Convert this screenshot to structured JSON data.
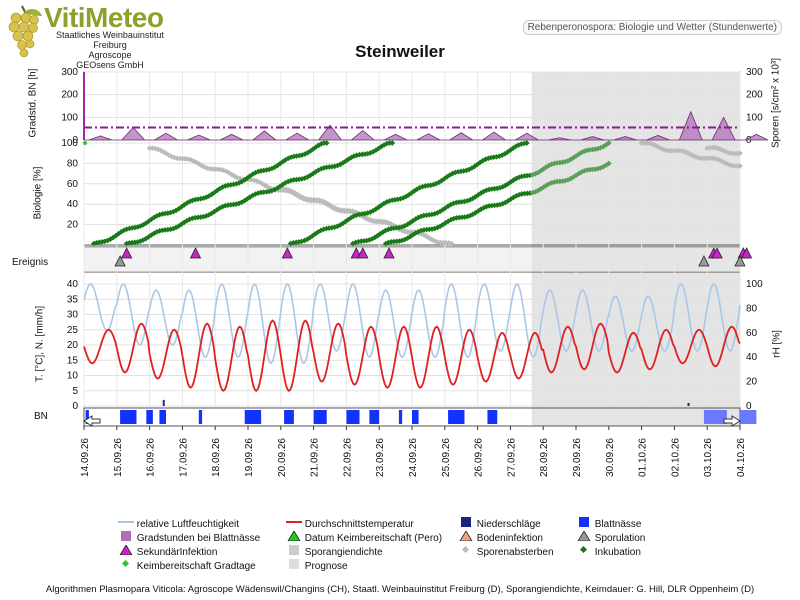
{
  "logo": {
    "title": "VitiMeteo",
    "line1": "Staatliches Weinbauinstitut Freiburg",
    "line2": "Agroscope",
    "line3": "GEOsens GmbH"
  },
  "header_label": "Rebenperonospora: Biologie und Wetter (Stundenwerte)",
  "station": "Steinweiler",
  "axes": {
    "gradstd_label": "Gradstd. BN [h]",
    "sporen_label": "Sporen [s/cm² x 10³]",
    "biologie_label": "Biologie [%]",
    "ereignis_label": "Ereignis",
    "temp_label": "T. [°C], N. [mm/h]",
    "rh_label": "rH [%]",
    "bn_label": "BN"
  },
  "footer": "Algorithmen Plasmopara Viticola: Agroscope Wädenswil/Changins (CH), Staatl. Weinbauinstitut Freiburg (D), Sporangiendichte, Keimdauer: G. Hill, DLR Oppenheim (D)",
  "legend": [
    {
      "label": "relative Luftfeuchtigkeit",
      "symbol": "line",
      "color": "#a9c8e8"
    },
    {
      "label": "Durchschnittstemperatur",
      "symbol": "line",
      "color": "#e02020"
    },
    {
      "label": "Niederschläge",
      "symbol": "square",
      "color": "#1a237e"
    },
    {
      "label": "Blattnässe",
      "symbol": "square",
      "color": "#1432ff"
    },
    {
      "label": "Gradstunden bei Blattnässe",
      "symbol": "square",
      "color": "#b070b8"
    },
    {
      "label": "Datum Keimbereitschaft (Pero)",
      "symbol": "triangle",
      "color": "#22cc22"
    },
    {
      "label": "Bodeninfektion",
      "symbol": "triangle",
      "color": "#f0a080"
    },
    {
      "label": "Sporulation",
      "symbol": "triangle",
      "color": "#999999"
    },
    {
      "label": "SekundärInfektion",
      "symbol": "triangle",
      "color": "#cc22cc"
    },
    {
      "label": "Sporangiendichte",
      "symbol": "square",
      "color": "#cccccc"
    },
    {
      "label": "Sporenabsterben",
      "symbol": "diamond",
      "color": "#bbbbbb"
    },
    {
      "label": "Inkubation",
      "symbol": "diamond",
      "color": "#1a7a1a"
    },
    {
      "label": "Keimbereitschaft Gradtage",
      "symbol": "diamond",
      "color": "#22cc22"
    },
    {
      "label": "Prognose",
      "symbol": "square",
      "color": "#dddddd"
    }
  ],
  "chart_data": {
    "type": "line",
    "dates": [
      "14.09.26",
      "15.09.26",
      "16.09.26",
      "17.09.26",
      "18.09.26",
      "19.09.26",
      "20.09.26",
      "21.09.26",
      "22.09.26",
      "23.09.26",
      "24.09.26",
      "25.09.26",
      "26.09.26",
      "27.09.26",
      "28.09.26",
      "29.09.26",
      "30.09.26",
      "01.10.26",
      "02.10.26",
      "03.10.26",
      "04.10.26"
    ],
    "prognose_start": "27.09.26",
    "panel_gradstd": {
      "ylim_left": [
        0,
        300
      ],
      "yticks_left": [
        0,
        100,
        200,
        300
      ],
      "ylim_right": [
        0,
        300
      ],
      "yticks_right": [
        0,
        100,
        200,
        300
      ],
      "threshold": 55,
      "gradstd_day_peaks": [
        18,
        55,
        30,
        22,
        25,
        40,
        30,
        65,
        42,
        25,
        28,
        32,
        35,
        30,
        10,
        15,
        15,
        20,
        125,
        100,
        25
      ]
    },
    "panel_biologie": {
      "ylim": [
        0,
        100
      ],
      "yticks": [
        20,
        40,
        60,
        80,
        100
      ],
      "inkubation_curves": [
        {
          "start": 0.3,
          "end": 7.4,
          "from": 0,
          "to": 100
        },
        {
          "start": 1.3,
          "end": 9.4,
          "from": 0,
          "to": 100
        },
        {
          "start": 6.3,
          "end": 13.5,
          "from": 0,
          "to": 100
        },
        {
          "start": 8.2,
          "end": 16.0,
          "from": 0,
          "to": 100
        },
        {
          "start": 9.2,
          "end": 16.0,
          "from": 0,
          "to": 80
        }
      ],
      "absterben_curves": [
        {
          "start": 2.0,
          "end": 11.2,
          "from": 95,
          "to": 0
        },
        {
          "start": 6.0,
          "end": 11.2,
          "from": 55,
          "to": 0
        },
        {
          "start": 17.0,
          "end": 21.0,
          "from": 100,
          "to": 70
        },
        {
          "start": 19.0,
          "end": 21.0,
          "from": 95,
          "to": 85
        }
      ]
    },
    "events": [
      {
        "type": "SekundärInfektion",
        "days": [
          1.3,
          3.4,
          6.2,
          8.3,
          8.5,
          9.3,
          19.2,
          19.3,
          20.1,
          20.2
        ]
      },
      {
        "type": "Sporulation",
        "days": [
          1.1,
          18.9,
          20.0
        ]
      }
    ],
    "panel_weather": {
      "ylim_left": [
        0,
        40
      ],
      "yticks_left": [
        0,
        5,
        10,
        15,
        20,
        25,
        30,
        35,
        40
      ],
      "ylim_right": [
        0,
        100
      ],
      "yticks_right": [
        0,
        20,
        40,
        60,
        80,
        100
      ],
      "temp_day_min": [
        14,
        11,
        9,
        6,
        5,
        5,
        5,
        8,
        7,
        6,
        6,
        7,
        8,
        9,
        11,
        12,
        11,
        12,
        14,
        13,
        14
      ],
      "temp_day_max": [
        25,
        27,
        25,
        27,
        26,
        28,
        28,
        27,
        26,
        26,
        26,
        25,
        24,
        24,
        26,
        27,
        24,
        25,
        25,
        26,
        27
      ],
      "rh_day_min": [
        62,
        50,
        50,
        40,
        40,
        35,
        35,
        45,
        40,
        40,
        40,
        40,
        45,
        40,
        45,
        45,
        45,
        45,
        45,
        45,
        50
      ],
      "rh_day_max": [
        100,
        100,
        95,
        95,
        100,
        100,
        100,
        100,
        100,
        95,
        95,
        100,
        100,
        100,
        95,
        95,
        90,
        90,
        100,
        100,
        100
      ],
      "rain_mm": [
        0,
        0,
        1,
        0,
        0,
        0,
        0,
        0,
        0,
        0,
        0,
        0,
        0,
        0,
        0,
        0,
        0,
        0,
        0.5,
        0,
        0
      ]
    },
    "bn_periods": [
      [
        0.05,
        0.15
      ],
      [
        1.1,
        1.6
      ],
      [
        1.9,
        2.1
      ],
      [
        2.3,
        2.5
      ],
      [
        3.5,
        3.6
      ],
      [
        4.9,
        5.4
      ],
      [
        6.1,
        6.4
      ],
      [
        7.0,
        7.4
      ],
      [
        8.0,
        8.4
      ],
      [
        8.7,
        9.0
      ],
      [
        9.6,
        9.7
      ],
      [
        10.0,
        10.2
      ],
      [
        11.1,
        11.6
      ],
      [
        12.3,
        12.6
      ],
      [
        18.9,
        19.6
      ],
      [
        20.0,
        20.5
      ]
    ]
  }
}
